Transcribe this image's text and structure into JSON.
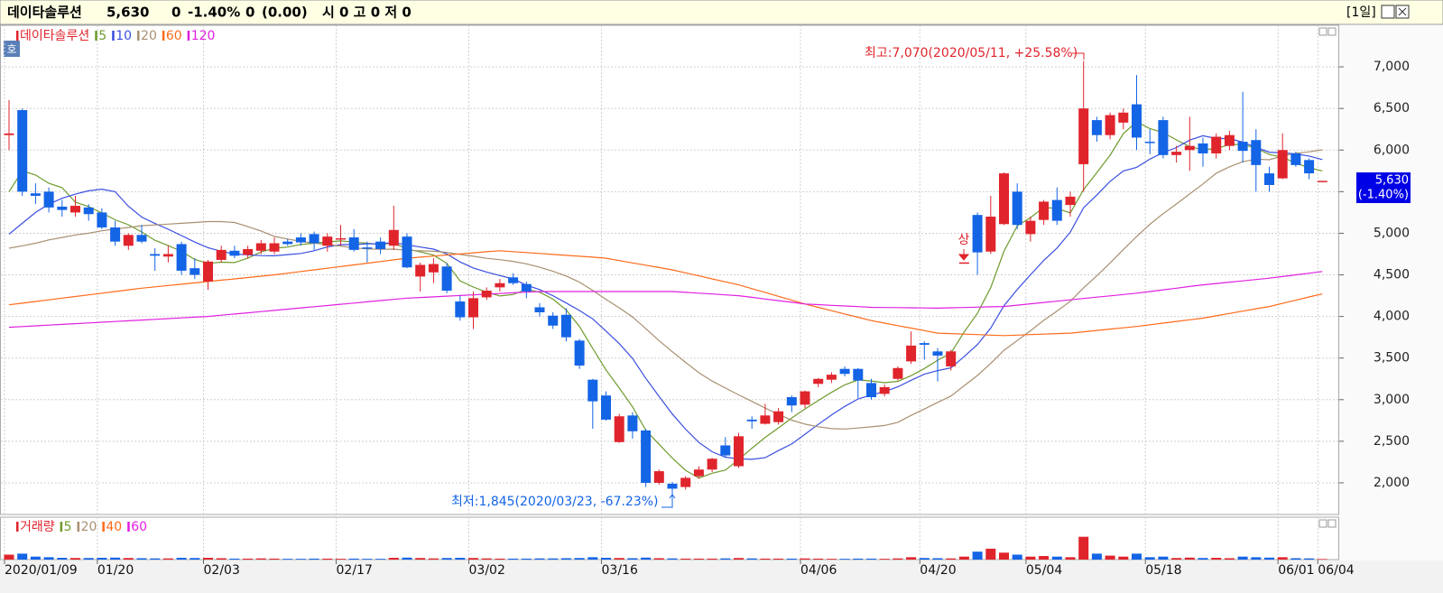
{
  "header": {
    "name": "데이타솔루션",
    "price": "5,630",
    "change": "0",
    "rate": "-1.40%",
    "volume": "0",
    "volume_change": "(0.00)",
    "ohlc": "시 0 고 0 저 0",
    "period": "[1일]"
  },
  "chart_data": {
    "type": "candlestick",
    "price_name": "데이타솔루션",
    "price_color": "#e0242c",
    "badge": "호",
    "color_up": "#e0242c",
    "color_down": "#1464e6",
    "categories": [
      "2020/01/09",
      null,
      null,
      null,
      null,
      null,
      null,
      "01/20",
      null,
      null,
      null,
      null,
      null,
      null,
      null,
      "02/03",
      null,
      null,
      null,
      null,
      null,
      null,
      null,
      null,
      null,
      "02/17",
      null,
      null,
      null,
      null,
      null,
      null,
      null,
      null,
      null,
      "03/02",
      null,
      null,
      null,
      null,
      null,
      null,
      null,
      null,
      null,
      "03/16",
      null,
      null,
      null,
      null,
      null,
      null,
      null,
      null,
      null,
      null,
      null,
      null,
      null,
      null,
      "04/06",
      null,
      null,
      null,
      null,
      null,
      null,
      null,
      null,
      "04/20",
      null,
      null,
      null,
      null,
      null,
      null,
      null,
      "05/04",
      null,
      null,
      null,
      null,
      null,
      null,
      null,
      null,
      "05/18",
      null,
      null,
      null,
      null,
      null,
      null,
      null,
      null,
      null,
      "06/01",
      null,
      null,
      "06/04"
    ],
    "open": [
      6180,
      6480,
      5480,
      5500,
      5320,
      5250,
      5310,
      5250,
      5070,
      4850,
      4980,
      4750,
      4720,
      4870,
      4580,
      4420,
      4680,
      4790,
      4740,
      4790,
      4780,
      4900,
      4950,
      4990,
      4850,
      4930,
      4950,
      4830,
      4900,
      4850,
      4960,
      4480,
      4530,
      4600,
      4180,
      3990,
      4230,
      4350,
      4470,
      4390,
      4110,
      4010,
      4020,
      3710,
      3240,
      3050,
      2490,
      2810,
      2630,
      2000,
      1990,
      1950,
      2080,
      2160,
      2450,
      2200,
      2760,
      2710,
      2730,
      3030,
      2940,
      3190,
      3240,
      3370,
      3370,
      3200,
      3070,
      3250,
      3460,
      3680,
      3580,
      3400,
      4650,
      5220,
      4780,
      5110,
      5500,
      4990,
      5160,
      5400,
      5340,
      5830,
      6360,
      6180,
      6330,
      6550,
      6100,
      6360,
      5940,
      6000,
      6080,
      5960,
      6050,
      6100,
      6120,
      5720,
      5660,
      5960,
      5880,
      5630
    ],
    "high": [
      6600,
      6500,
      5600,
      5550,
      5400,
      5450,
      5350,
      5300,
      5150,
      5000,
      5100,
      4820,
      4850,
      4900,
      4700,
      4680,
      4850,
      4850,
      4850,
      4920,
      4950,
      4930,
      5000,
      5020,
      5000,
      5100,
      5050,
      4900,
      4950,
      5330,
      5000,
      4650,
      4700,
      4640,
      4250,
      4300,
      4350,
      4450,
      4520,
      4420,
      4160,
      4050,
      4100,
      3730,
      3250,
      3100,
      2830,
      2850,
      2650,
      2160,
      2010,
      2080,
      2200,
      2300,
      2550,
      2600,
      2800,
      2950,
      2900,
      3050,
      3110,
      3260,
      3330,
      3400,
      3380,
      3250,
      3180,
      3400,
      3820,
      3700,
      3620,
      3600,
      4650,
      5250,
      5450,
      5730,
      5600,
      5200,
      5400,
      5550,
      5500,
      7070,
      6400,
      6450,
      6500,
      6900,
      6250,
      6400,
      6050,
      6400,
      6150,
      6200,
      6230,
      6700,
      6250,
      5800,
      6200,
      5980,
      5900,
      5630
    ],
    "low": [
      6000,
      5450,
      5350,
      5250,
      5200,
      5200,
      5150,
      5050,
      4850,
      4800,
      4880,
      4550,
      4650,
      4500,
      4450,
      4320,
      4650,
      4700,
      4700,
      4750,
      4750,
      4850,
      4850,
      4800,
      4780,
      4850,
      4780,
      4650,
      4750,
      4800,
      4580,
      4300,
      4400,
      4280,
      3950,
      3850,
      4200,
      4300,
      4380,
      4220,
      4000,
      3850,
      3700,
      3370,
      2650,
      2750,
      2480,
      2530,
      1950,
      1980,
      1845,
      1920,
      2050,
      2130,
      2300,
      2180,
      2650,
      2700,
      2700,
      2850,
      2900,
      3150,
      3200,
      3280,
      3020,
      3000,
      3040,
      3230,
      3430,
      3480,
      3220,
      3350,
      4650,
      4500,
      4750,
      5100,
      5050,
      4900,
      5100,
      5100,
      5200,
      5500,
      6100,
      6130,
      6250,
      6000,
      5950,
      5900,
      5850,
      5750,
      5800,
      5900,
      6000,
      5850,
      5500,
      5500,
      5650,
      5800,
      5650,
      5630
    ],
    "close": [
      6200,
      5500,
      5450,
      5310,
      5280,
      5330,
      5230,
      5070,
      4900,
      4980,
      4900,
      4730,
      4750,
      4550,
      4500,
      4660,
      4800,
      4730,
      4810,
      4880,
      4880,
      4870,
      4890,
      4880,
      4960,
      4940,
      4800,
      4820,
      4810,
      5040,
      4590,
      4620,
      4630,
      4310,
      3990,
      4220,
      4310,
      4400,
      4400,
      4300,
      4050,
      3890,
      3750,
      3410,
      2980,
      2760,
      2800,
      2620,
      2000,
      2140,
      1930,
      2060,
      2160,
      2290,
      2330,
      2560,
      2740,
      2810,
      2860,
      2930,
      3100,
      3250,
      3300,
      3310,
      3230,
      3030,
      3150,
      3380,
      3650,
      3660,
      3530,
      3580,
      4650,
      4770,
      5200,
      5720,
      5100,
      5150,
      5380,
      5150,
      5440,
      6500,
      6180,
      6420,
      6450,
      6150,
      6090,
      5940,
      5980,
      6050,
      5960,
      6160,
      6180,
      5990,
      5820,
      5580,
      6000,
      5820,
      5720,
      5630
    ],
    "series": [
      {
        "name": "5",
        "color": "#6f9a2c",
        "values": [
          5500,
          5750,
          5700,
          5600,
          5548,
          5374,
          5320,
          5244,
          5162,
          5102,
          5016,
          4916,
          4852,
          4782,
          4686,
          4638,
          4652,
          4648,
          4700,
          4776,
          4820,
          4834,
          4866,
          4880,
          4896,
          4908,
          4894,
          4880,
          4866,
          4882,
          4812,
          4776,
          4738,
          4638,
          4428,
          4354,
          4292,
          4246,
          4264,
          4326,
          4292,
          4208,
          4078,
          3880,
          3616,
          3358,
          3140,
          2914,
          2632,
          2464,
          2298,
          2150,
          2058,
          2116,
          2154,
          2280,
          2416,
          2546,
          2660,
          2780,
          2888,
          2990,
          3088,
          3178,
          3238,
          3224,
          3204,
          3220,
          3288,
          3374,
          3474,
          3560,
          3814,
          4038,
          4346,
          4784,
          5088,
          5188,
          5310,
          5300,
          5244,
          5524,
          5730,
          5938,
          6198,
          6340,
          6258,
          6210,
          6122,
          6042,
          6004,
          6018,
          6066,
          6068,
          6022,
          5946,
          5914,
          5842,
          5788,
          5750
        ]
      },
      {
        "name": "10",
        "color": "#3a4ee0",
        "values": [
          4990,
          5120,
          5250,
          5350,
          5420,
          5470,
          5510,
          5530,
          5500,
          5325,
          5195,
          5118,
          5048,
          4972,
          4894,
          4827,
          4784,
          4750,
          4741,
          4731,
          4729,
          4743,
          4757,
          4790,
          4836,
          4864,
          4864,
          4873,
          4873,
          4889,
          4860,
          4835,
          4809,
          4752,
          4655,
          4583,
          4534,
          4492,
          4451,
          4377,
          4323,
          4250,
          4162,
          4072,
          3971,
          3825,
          3674,
          3496,
          3256,
          3040,
          2828,
          2645,
          2486,
          2374,
          2309,
          2289,
          2283,
          2302,
          2388,
          2467,
          2584,
          2703,
          2817,
          2919,
          3009,
          3056,
          3097,
          3154,
          3233,
          3306,
          3349,
          3382,
          3517,
          3663,
          3860,
          4129,
          4324,
          4501,
          4674,
          4823,
          5014,
          5306,
          5459,
          5624,
          5749,
          5792,
          5891,
          5970,
          6030,
          6120,
          6172,
          6138,
          6138,
          6095,
          6032,
          5975,
          5966,
          5954,
          5928,
          5886
        ]
      },
      {
        "name": "20",
        "color": "#a89070",
        "values": [
          4820,
          4850,
          4880,
          4920,
          4950,
          4980,
          5000,
          5030,
          5050,
          5070,
          5090,
          5100,
          5110,
          5120,
          5130,
          5140,
          5140,
          5130,
          5080,
          5028,
          4962,
          4931,
          4903,
          4881,
          4865,
          4846,
          4824,
          4812,
          4807,
          4810,
          4795,
          4789,
          4783,
          4771,
          4746,
          4724,
          4699,
          4683,
          4662,
          4633,
          4592,
          4543,
          4486,
          4412,
          4313,
          4204,
          4104,
          3994,
          3854,
          3709,
          3576,
          3448,
          3324,
          3223,
          3140,
          3057,
          2979,
          2899,
          2822,
          2754,
          2706,
          2674,
          2652,
          2647,
          2659,
          2673,
          2690,
          2728,
          2811,
          2887,
          2967,
          3043,
          3167,
          3291,
          3435,
          3593,
          3711,
          3828,
          3954,
          4065,
          4182,
          4344,
          4488,
          4644,
          4805,
          4961,
          5108,
          5236,
          5352,
          5472,
          5593,
          5722,
          5799,
          5860,
          5891,
          5884,
          5929,
          5962,
          5979,
          6003
        ]
      },
      {
        "name": "60",
        "color": "#ff6a1a",
        "values": [
          4140,
          4160,
          4180,
          4200,
          4220,
          4240,
          4260,
          4280,
          4300,
          4320,
          4340,
          4356,
          4372,
          4388,
          4404,
          4420,
          4436,
          4452,
          4468,
          4484,
          4500,
          4520,
          4540,
          4560,
          4580,
          4600,
          4620,
          4640,
          4660,
          4680,
          4700,
          4713,
          4726,
          4739,
          4752,
          4765,
          4778,
          4790,
          4779,
          4768,
          4757,
          4746,
          4735,
          4724,
          4713,
          4700,
          4672,
          4644,
          4616,
          4588,
          4560,
          4524,
          4488,
          4452,
          4416,
          4380,
          4334,
          4288,
          4242,
          4196,
          4150,
          4110,
          4070,
          4030,
          3990,
          3950,
          3920,
          3890,
          3860,
          3830,
          3800,
          3794,
          3788,
          3782,
          3776,
          3770,
          3776,
          3782,
          3788,
          3794,
          3800,
          3816,
          3832,
          3848,
          3864,
          3880,
          3900,
          3920,
          3940,
          3960,
          3980,
          4008,
          4036,
          4064,
          4092,
          4120,
          4158,
          4196,
          4234,
          4270
        ]
      },
      {
        "name": "120",
        "color": "#e020e0",
        "values": [
          3870,
          3879,
          3887,
          3896,
          3905,
          3913,
          3922,
          3931,
          3939,
          3948,
          3957,
          3965,
          3974,
          3983,
          3991,
          4000,
          4015,
          4029,
          4044,
          4059,
          4073,
          4088,
          4103,
          4117,
          4132,
          4147,
          4161,
          4176,
          4191,
          4205,
          4220,
          4228,
          4236,
          4244,
          4252,
          4260,
          4268,
          4276,
          4284,
          4292,
          4300,
          4300,
          4300,
          4300,
          4300,
          4300,
          4300,
          4300,
          4300,
          4300,
          4300,
          4290,
          4280,
          4270,
          4260,
          4250,
          4230,
          4210,
          4190,
          4170,
          4150,
          4142,
          4134,
          4126,
          4118,
          4110,
          4108,
          4106,
          4104,
          4102,
          4100,
          4104,
          4108,
          4112,
          4116,
          4120,
          4136,
          4152,
          4168,
          4184,
          4200,
          4216,
          4232,
          4248,
          4264,
          4280,
          4300,
          4320,
          4340,
          4360,
          4380,
          4396,
          4412,
          4428,
          4444,
          4460,
          4480,
          4500,
          4520,
          4540
        ]
      }
    ],
    "ylim": [
      1620,
      7500
    ],
    "yticks": [
      {
        "value": 2000,
        "label": "2,000"
      },
      {
        "value": 2500,
        "label": "2,500"
      },
      {
        "value": 3000,
        "label": "3,000"
      },
      {
        "value": 3500,
        "label": "3,500"
      },
      {
        "value": 4000,
        "label": "4,000"
      },
      {
        "value": 4500,
        "label": "4,500"
      },
      {
        "value": 5000,
        "label": "5,000"
      },
      {
        "value": 5500,
        "label": "5,500"
      },
      {
        "value": 6000,
        "label": "6,000"
      },
      {
        "value": 6500,
        "label": "6,500"
      },
      {
        "value": 7000,
        "label": "7,000"
      }
    ],
    "grid": true,
    "annotations": [
      "최고:7,070(2020/05/11, +25.58%)",
      "최저:1,845(2020/03/23, -67.23%)",
      "상"
    ],
    "last_label": {
      "price": "5,630",
      "rate": "(-1.40%)"
    },
    "volume": {
      "name": "거래량",
      "ylim": [
        0,
        2000000
      ],
      "ma": [
        {
          "name": "5",
          "color": "#6f9a2c"
        },
        {
          "name": "20",
          "color": "#a89070"
        },
        {
          "name": "40",
          "color": "#ff6a1a"
        },
        {
          "name": "60",
          "color": "#e020e0"
        }
      ],
      "values": [
        250000,
        300000,
        150000,
        120000,
        90000,
        80000,
        80000,
        90000,
        100000,
        80000,
        70000,
        60000,
        60000,
        90000,
        80000,
        90000,
        70000,
        50000,
        50000,
        60000,
        50000,
        40000,
        40000,
        50000,
        50000,
        40000,
        50000,
        40000,
        40000,
        90000,
        100000,
        80000,
        60000,
        80000,
        90000,
        80000,
        60000,
        50000,
        50000,
        50000,
        60000,
        60000,
        70000,
        80000,
        120000,
        90000,
        80000,
        70000,
        100000,
        70000,
        60000,
        50000,
        50000,
        50000,
        60000,
        80000,
        60000,
        50000,
        50000,
        50000,
        60000,
        50000,
        40000,
        40000,
        50000,
        50000,
        40000,
        60000,
        120000,
        80000,
        70000,
        60000,
        150000,
        400000,
        550000,
        350000,
        250000,
        150000,
        180000,
        150000,
        120000,
        1150000,
        300000,
        200000,
        150000,
        300000,
        120000,
        150000,
        80000,
        100000,
        80000,
        90000,
        70000,
        150000,
        120000,
        100000,
        120000,
        70000,
        60000,
        30000
      ]
    }
  }
}
